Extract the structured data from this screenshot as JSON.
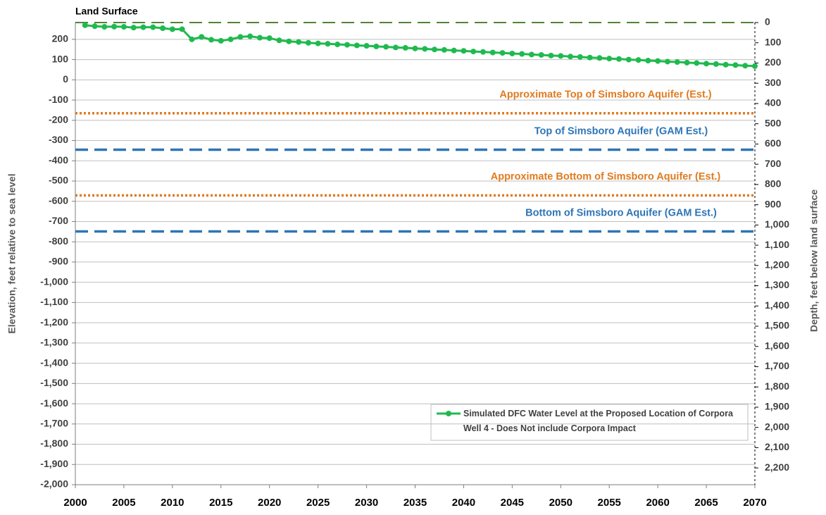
{
  "chart_data": {
    "type": "line",
    "axis_label_left": "Elevation, feet relative to sea level",
    "axis_label_right": "Depth, feet below land surface",
    "xlim": [
      2000,
      2070
    ],
    "xticks": [
      2000,
      2005,
      2010,
      2015,
      2020,
      2025,
      2030,
      2035,
      2040,
      2045,
      2050,
      2055,
      2060,
      2065,
      2070
    ],
    "ylim": [
      -2000,
      283
    ],
    "yticks": [
      200,
      100,
      0,
      -100,
      -200,
      -300,
      -400,
      -500,
      -600,
      -700,
      -800,
      -900,
      {
        "value": -1000,
        "label": "-1,000"
      },
      {
        "value": -1100,
        "label": "-1,100"
      },
      {
        "value": -1200,
        "label": "-1,200"
      },
      {
        "value": -1300,
        "label": "-1,300"
      },
      {
        "value": -1400,
        "label": "-1,400"
      },
      {
        "value": -1500,
        "label": "-1,500"
      },
      {
        "value": -1600,
        "label": "-1,600"
      },
      {
        "value": -1700,
        "label": "-1,700"
      },
      {
        "value": -1800,
        "label": "-1,800"
      },
      {
        "value": -1900,
        "label": "-1,900"
      },
      {
        "value": -2000,
        "label": "-2,000"
      }
    ],
    "y2lim": [
      2283,
      0
    ],
    "y2ticks": [
      0,
      100,
      200,
      300,
      400,
      500,
      600,
      700,
      800,
      900,
      {
        "value": 1000,
        "label": "1,000"
      },
      {
        "value": 1100,
        "label": "1,100"
      },
      {
        "value": 1200,
        "label": "1,200"
      },
      {
        "value": 1300,
        "label": "1,300"
      },
      {
        "value": 1400,
        "label": "1,400"
      },
      {
        "value": 1500,
        "label": "1,500"
      },
      {
        "value": 1600,
        "label": "1,600"
      },
      {
        "value": 1700,
        "label": "1,700"
      },
      {
        "value": 1800,
        "label": "1,800"
      },
      {
        "value": 1900,
        "label": "1,900"
      },
      {
        "value": 2000,
        "label": "2,000"
      },
      {
        "value": 2100,
        "label": "2,100"
      },
      {
        "value": 2200,
        "label": "2,200"
      }
    ],
    "grid": true,
    "reference_lines": [
      {
        "label": "Land Surface",
        "value": 283,
        "color": "#548235",
        "style": "dashed"
      },
      {
        "label": "Approximate Top of Simsboro Aquifer (Est.)",
        "value": -165,
        "color": "#e07b20",
        "style": "dotted"
      },
      {
        "label": "Top of Simsboro Aquifer (GAM Est.)",
        "value": -345,
        "color": "#2e75b6",
        "style": "dashed"
      },
      {
        "label": "Approximate Bottom of Simsboro Aquifer (Est.)",
        "value": -571,
        "color": "#e07b20",
        "style": "dotted"
      },
      {
        "label": "Bottom of Simsboro Aquifer (GAM Est.)",
        "value": -749,
        "color": "#2e75b6",
        "style": "dashed"
      }
    ],
    "x": [
      2001,
      2002,
      2003,
      2004,
      2005,
      2006,
      2007,
      2008,
      2009,
      2010,
      2011,
      2012,
      2013,
      2014,
      2015,
      2016,
      2017,
      2018,
      2019,
      2020,
      2021,
      2022,
      2023,
      2024,
      2025,
      2026,
      2027,
      2028,
      2029,
      2030,
      2031,
      2032,
      2033,
      2034,
      2035,
      2036,
      2037,
      2038,
      2039,
      2040,
      2041,
      2042,
      2043,
      2044,
      2045,
      2046,
      2047,
      2048,
      2049,
      2050,
      2051,
      2052,
      2053,
      2054,
      2055,
      2056,
      2057,
      2058,
      2059,
      2060,
      2061,
      2062,
      2063,
      2064,
      2065,
      2066,
      2067,
      2068,
      2069,
      2070
    ],
    "series": [
      {
        "name": "Simulated DFC Water Level at the Proposed Location of Corpora Well 4  - Does Not include Corpora Impact",
        "color": "#1fba4f",
        "values": [
          270,
          265,
          262,
          263,
          262,
          258,
          260,
          260,
          255,
          250,
          250,
          200,
          212,
          198,
          193,
          200,
          212,
          215,
          208,
          206,
          195,
          190,
          187,
          183,
          180,
          178,
          175,
          173,
          170,
          168,
          165,
          163,
          160,
          158,
          155,
          153,
          150,
          148,
          145,
          143,
          140,
          138,
          135,
          133,
          130,
          128,
          125,
          123,
          120,
          118,
          115,
          113,
          110,
          108,
          105,
          103,
          100,
          98,
          95,
          93,
          90,
          88,
          85,
          83,
          80,
          78,
          75,
          73,
          70,
          68
        ]
      }
    ],
    "legend": "lower right"
  }
}
